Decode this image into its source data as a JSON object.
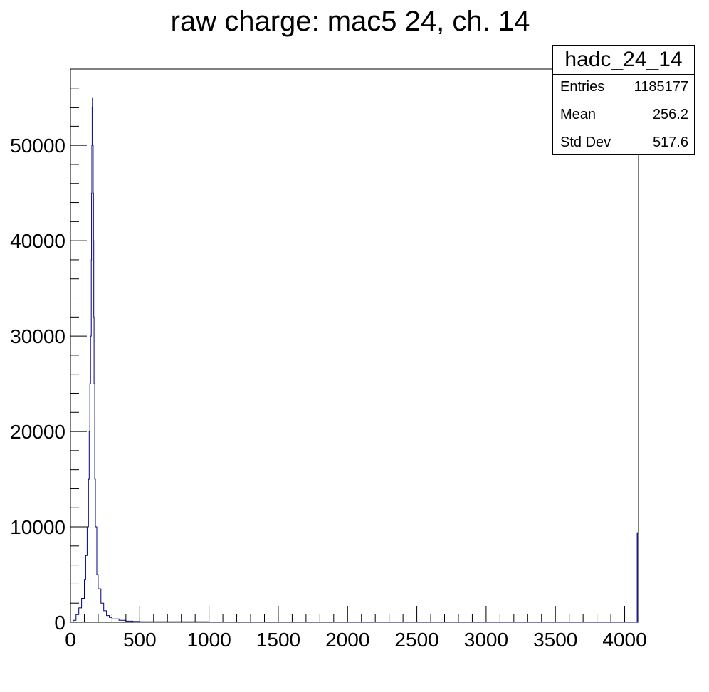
{
  "chart_data": {
    "type": "histogram",
    "title": "raw charge: mac5 24, ch. 14",
    "xlabel": "",
    "ylabel": "",
    "xlim": [
      0,
      4100
    ],
    "ylim": [
      0,
      58000
    ],
    "x_ticks": [
      0,
      500,
      1000,
      1500,
      2000,
      2500,
      3000,
      3500,
      4000
    ],
    "y_ticks": [
      0,
      10000,
      20000,
      30000,
      40000,
      50000
    ],
    "line_color": "#000080",
    "grid": false,
    "bin_width": 4,
    "series": [
      {
        "x": [
          0,
          20,
          40,
          60,
          80,
          100,
          110,
          120,
          130,
          135,
          140,
          145,
          150,
          152,
          154,
          156,
          158,
          160,
          162,
          164,
          166,
          168,
          170,
          175,
          180,
          190,
          200,
          220,
          240,
          260,
          280,
          300,
          350,
          400,
          450,
          500,
          1000,
          2000,
          3000,
          4000,
          4080,
          4090,
          4092,
          4096
        ],
        "values": [
          0,
          200,
          800,
          1500,
          2500,
          4500,
          7000,
          10000,
          15000,
          20000,
          25000,
          30000,
          38000,
          45000,
          50000,
          54000,
          55000,
          54000,
          50000,
          45000,
          40000,
          32000,
          25000,
          15000,
          10000,
          5000,
          3500,
          2000,
          1200,
          700,
          500,
          350,
          200,
          120,
          80,
          50,
          15,
          5,
          3,
          2,
          10,
          9400,
          0,
          0
        ]
      }
    ]
  },
  "stats": {
    "name": "hadc_24_14",
    "rows": [
      {
        "label": "Entries",
        "value": "1185177"
      },
      {
        "label": "Mean",
        "value": "256.2"
      },
      {
        "label": "Std Dev",
        "value": "517.6"
      }
    ]
  }
}
